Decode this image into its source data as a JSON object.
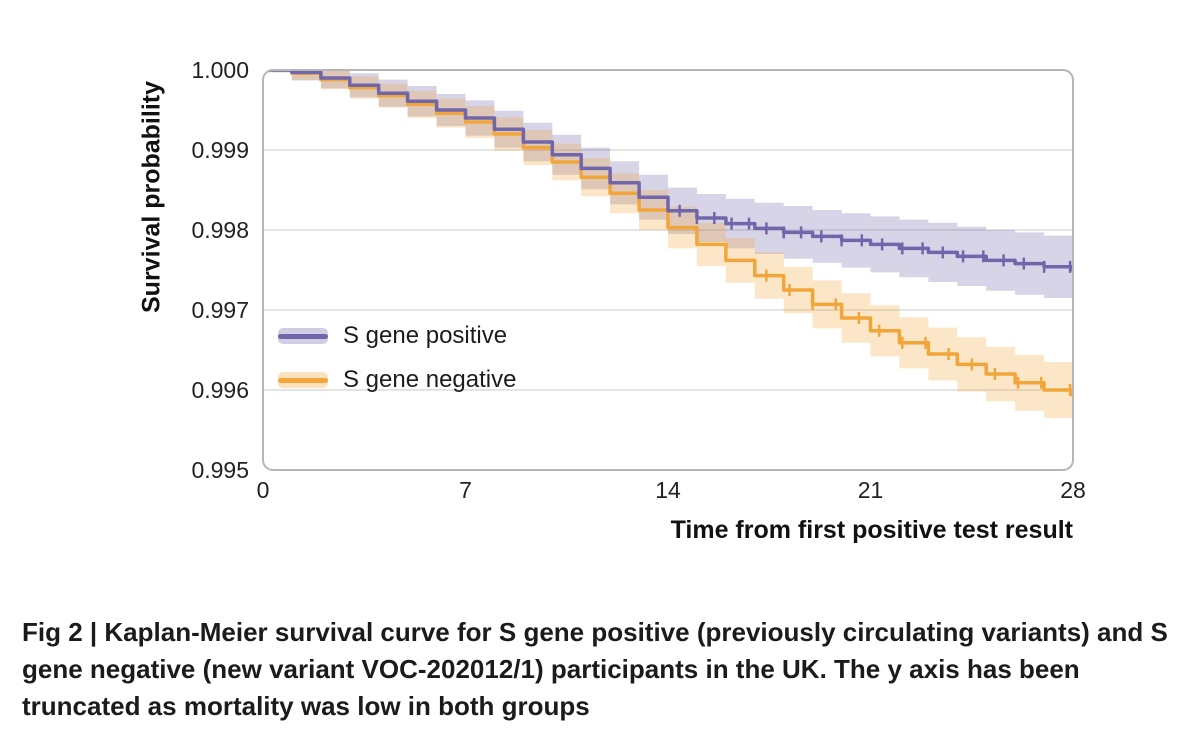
{
  "figure": {
    "caption": "Fig 2 | Kaplan-Meier survival curve for S gene positive (previously circulating variants) and S gene negative (new variant VOC-202012/1) participants in the UK. The y axis has been truncated as mortality was low in both groups"
  },
  "chart_data": {
    "type": "line",
    "subtype": "kaplan-meier-step",
    "title": "",
    "xlabel": "Time from first positive test result",
    "ylabel": "Survival probability",
    "xlim": [
      0,
      28
    ],
    "ylim": [
      0.995,
      1.0
    ],
    "x_ticks": [
      0,
      7,
      14,
      21,
      28
    ],
    "y_ticks": [
      1.0,
      0.999,
      0.998,
      0.997,
      0.996,
      0.995
    ],
    "grid": "horizontal",
    "grid_color": "#dcdcdc",
    "border_color": "#b6b6b6",
    "tick_label_color": "#222222",
    "legend_position": "inside-left-middle",
    "x": [
      0,
      1,
      2,
      3,
      4,
      5,
      6,
      7,
      8,
      9,
      10,
      11,
      12,
      13,
      14,
      15,
      16,
      17,
      18,
      19,
      20,
      21,
      22,
      23,
      24,
      25,
      26,
      27,
      28
    ],
    "series": [
      {
        "name": "S gene positive",
        "color": "#7066ac",
        "band_opacity": 0.28,
        "y": [
          1.0,
          0.99997,
          0.9999,
          0.99981,
          0.99971,
          0.99961,
          0.9995,
          0.9994,
          0.99926,
          0.9991,
          0.99894,
          0.99877,
          0.99859,
          0.99841,
          0.99824,
          0.99815,
          0.99808,
          0.99802,
          0.99797,
          0.99792,
          0.99787,
          0.99782,
          0.99777,
          0.99772,
          0.99767,
          0.99762,
          0.99758,
          0.99754,
          0.9975
        ],
        "ci_half": [
          3e-05,
          0.0001,
          0.00013,
          0.00015,
          0.00017,
          0.00019,
          0.0002,
          0.00022,
          0.00023,
          0.00024,
          0.00025,
          0.00026,
          0.00027,
          0.00028,
          0.00029,
          0.0003,
          0.00031,
          0.00032,
          0.00033,
          0.00033,
          0.00034,
          0.00035,
          0.00036,
          0.00037,
          0.00037,
          0.00038,
          0.00039,
          0.00039,
          0.0004
        ],
        "censor_x": [
          14.4,
          15.0,
          15.6,
          16.2,
          16.8,
          17.4,
          18.0,
          18.6,
          19.3,
          20.0,
          20.7,
          21.4,
          22.1,
          22.8,
          23.5,
          24.2,
          24.9,
          25.6,
          26.3,
          27.0,
          27.9
        ]
      },
      {
        "name": "S gene negative",
        "color": "#f0a63a",
        "band_opacity": 0.28,
        "y": [
          1.0,
          0.99996,
          0.99988,
          0.99978,
          0.99968,
          0.99957,
          0.99946,
          0.99935,
          0.9992,
          0.99903,
          0.99885,
          0.99866,
          0.99846,
          0.99825,
          0.99803,
          0.99782,
          0.99762,
          0.99743,
          0.99725,
          0.99707,
          0.9969,
          0.99674,
          0.99659,
          0.99645,
          0.99632,
          0.9962,
          0.99609,
          0.996,
          0.99593
        ],
        "ci_half": [
          3e-05,
          9e-05,
          0.00012,
          0.00014,
          0.00015,
          0.00017,
          0.00018,
          0.0002,
          0.00021,
          0.00022,
          0.00023,
          0.00024,
          0.00025,
          0.00025,
          0.00026,
          0.00027,
          0.00028,
          0.00029,
          0.00029,
          0.0003,
          0.00031,
          0.00032,
          0.00032,
          0.00033,
          0.00034,
          0.00034,
          0.00035,
          0.00035,
          0.00036
        ],
        "censor_x": [
          17.4,
          18.2,
          19.0,
          19.8,
          20.6,
          21.3,
          22.1,
          22.9,
          23.7,
          24.5,
          25.3,
          26.1,
          26.9,
          27.9
        ]
      }
    ]
  }
}
